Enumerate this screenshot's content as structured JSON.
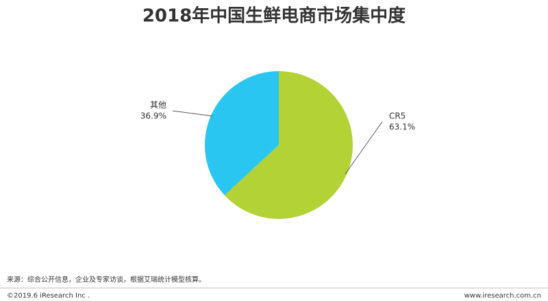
{
  "chart_data": {
    "type": "pie",
    "title": "2018年中国生鲜电商市场集中度",
    "categories": [
      "CR5",
      "其他"
    ],
    "values": [
      63.1,
      36.9
    ],
    "value_labels": [
      "63.1%",
      "36.9%"
    ],
    "colors": [
      "#b3d235",
      "#29c6f1"
    ]
  },
  "footer": {
    "source": "来源：综合公开信息，企业及专家访谈，根据艾瑞统计模型核算。",
    "copyright": "©2019.6 iResearch Inc .",
    "website": "www.iresearch.com.cn"
  }
}
